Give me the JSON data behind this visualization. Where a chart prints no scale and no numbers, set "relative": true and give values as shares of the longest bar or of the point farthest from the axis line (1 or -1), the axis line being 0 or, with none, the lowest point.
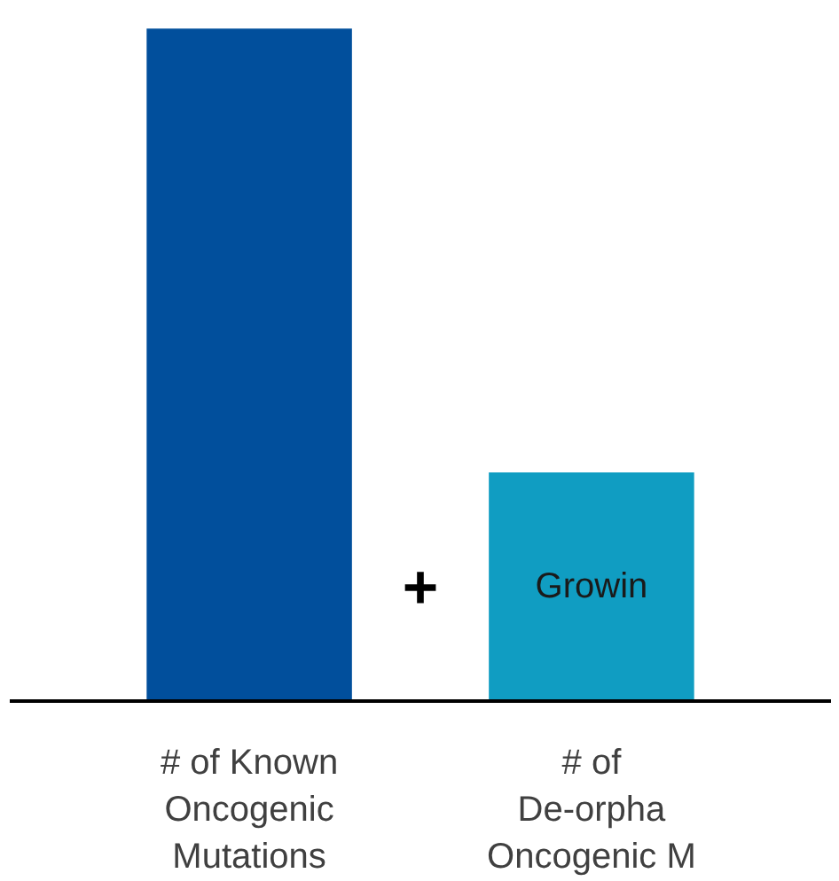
{
  "chart_data": {
    "type": "bar",
    "relative": true,
    "categories": [
      "# of Known\nOncogenic\nMutations",
      "# of\nDe-orpha\nOncogenic M"
    ],
    "values": [
      1,
      0.34
    ],
    "colors": [
      "#014f9c",
      "#109dc2"
    ],
    "annotations": [
      "Growin",
      "+"
    ],
    "grid": false
  }
}
